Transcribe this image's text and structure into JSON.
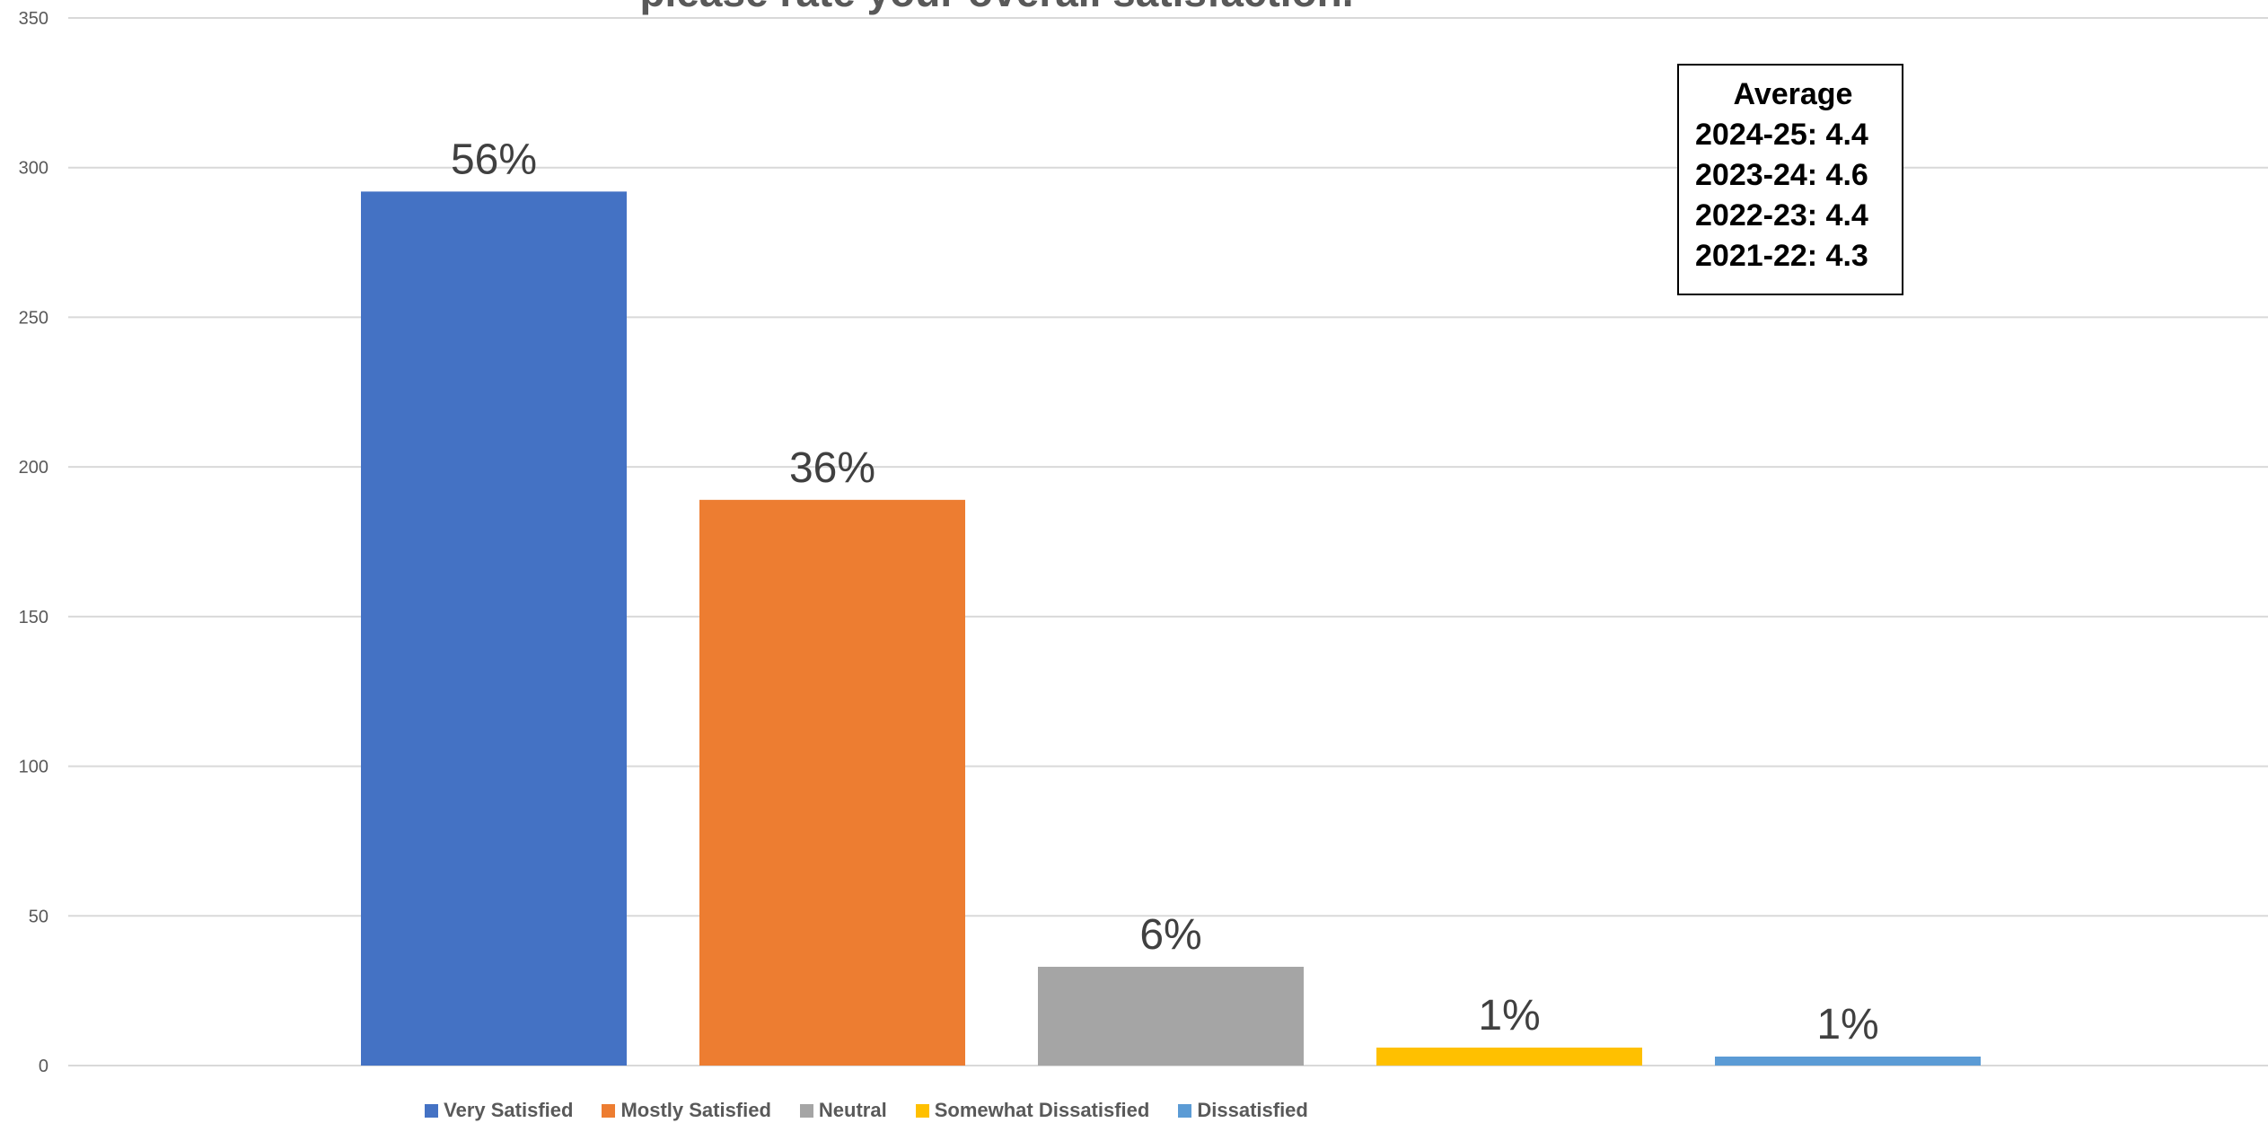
{
  "chart_data": {
    "type": "bar",
    "title": "please rate your overall satisfaction.",
    "xlabel": "",
    "ylabel": "",
    "categories": [
      "Very Satisfied",
      "Mostly Satisfied",
      "Neutral",
      "Somewhat Dissatisfied",
      "Dissatisfied"
    ],
    "values": [
      292,
      189,
      33,
      6,
      3
    ],
    "data_labels": [
      "56%",
      "36%",
      "6%",
      "1%",
      "1%"
    ],
    "colors": [
      "#4472C4",
      "#ED7D31",
      "#A5A5A5",
      "#FFC000",
      "#5B9BD5"
    ],
    "ylim": [
      0,
      350
    ],
    "yticks": [
      "0",
      "50",
      "100",
      "150",
      "200",
      "250",
      "300",
      "350"
    ],
    "grid": true,
    "legend_position": "bottom"
  },
  "annotation": {
    "title": "Average",
    "lines": [
      "2024-25: 4.4",
      "2023-24: 4.6",
      "2022-23: 4.4",
      "2021-22: 4.3"
    ]
  }
}
